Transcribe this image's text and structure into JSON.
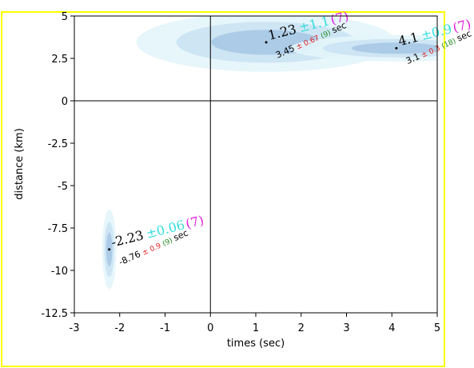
{
  "chart_data": {
    "type": "scatter",
    "x_label": "times (sec)",
    "y_label": "distance (km)",
    "xlim": [
      -3,
      5
    ],
    "ylim": [
      -12.5,
      5
    ],
    "xticks": [
      -3,
      -2,
      -1,
      0,
      1,
      2,
      3,
      4,
      5
    ],
    "yticks": [
      -12.5,
      -10,
      -7.5,
      -5,
      -2.5,
      0,
      2.5,
      5
    ],
    "ellipse_colors": [
      "#e3f5fb",
      "#cbe3f3",
      "#a8c8e6"
    ],
    "x_err_color": "#33dddd",
    "x_n_color": "#e020e0",
    "y_err_color": "#e02020",
    "y_n_color": "#208a20",
    "points": [
      {
        "x": -2.23,
        "x_err": 0.06,
        "x_err_label": "±0.06",
        "x_n": 7,
        "x_n_label": "(7)",
        "y": -8.76,
        "y_err": 0.9,
        "y_err_label": "± 0.9",
        "y_n": 9,
        "y_n_label": "(9)",
        "unit": "sec"
      },
      {
        "x": 1.23,
        "x_err": 1.1,
        "x_err_label": "±1.1",
        "x_n": 7,
        "x_n_label": "(7)",
        "y": 3.45,
        "y_err": 0.67,
        "y_err_label": "± 0.67",
        "y_n": 9,
        "y_n_label": "(9)",
        "unit": "sec"
      },
      {
        "x": 4.1,
        "x_err": 0.9,
        "x_err_label": "±0.9",
        "x_n": 7,
        "x_n_label": "(7)",
        "y": 3.1,
        "y_err": 0.3,
        "y_err_label": "± 0.3",
        "y_n": 18,
        "y_n_label": "(18)",
        "unit": "sec"
      }
    ]
  }
}
